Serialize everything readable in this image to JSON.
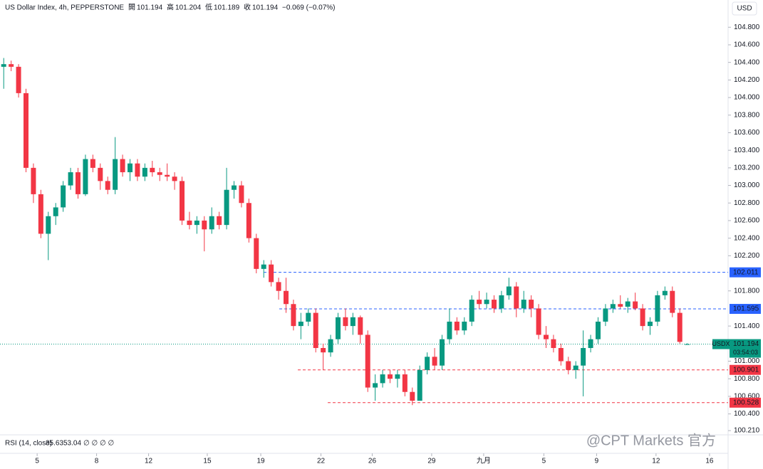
{
  "chart_data": {
    "type": "candlestick",
    "title": "US Dollar Index, 4h, PEPPERSTONE",
    "ohlc_header": [
      {
        "name": "開",
        "value": "101.194"
      },
      {
        "name": "高",
        "value": "101.204"
      },
      {
        "name": "低",
        "value": "101.189"
      },
      {
        "name": "收",
        "value": "101.194"
      }
    ],
    "change": "−0.069 (−0.07%)",
    "currency": "USD",
    "up_color": "#089981",
    "down_color": "#f23645",
    "ylim": [
      100.17,
      105.11
    ],
    "yticks": [
      {
        "value": 104.8,
        "label": "104.800"
      },
      {
        "value": 104.6,
        "label": "104.600"
      },
      {
        "value": 104.4,
        "label": "104.400"
      },
      {
        "value": 104.2,
        "label": "104.200"
      },
      {
        "value": 104.0,
        "label": "104.000"
      },
      {
        "value": 103.8,
        "label": "103.800"
      },
      {
        "value": 103.6,
        "label": "103.600"
      },
      {
        "value": 103.4,
        "label": "103.400"
      },
      {
        "value": 103.2,
        "label": "103.200"
      },
      {
        "value": 103.0,
        "label": "103.000"
      },
      {
        "value": 102.8,
        "label": "102.800"
      },
      {
        "value": 102.6,
        "label": "102.600"
      },
      {
        "value": 102.4,
        "label": "102.400"
      },
      {
        "value": 102.2,
        "label": "102.200"
      },
      {
        "value": 101.8,
        "label": "101.800"
      },
      {
        "value": 101.4,
        "label": "101.400"
      },
      {
        "value": 101.0,
        "label": "101.000"
      },
      {
        "value": 100.8,
        "label": "100.800"
      },
      {
        "value": 100.6,
        "label": "100.600"
      },
      {
        "value": 100.4,
        "label": "100.400"
      },
      {
        "value": 100.21,
        "label": "100.210"
      }
    ],
    "xlim": [
      -0.5,
      97.5
    ],
    "xticks": [
      {
        "value": 4.5,
        "label": "5"
      },
      {
        "value": 12.5,
        "label": "8"
      },
      {
        "value": 19.5,
        "label": "12"
      },
      {
        "value": 27.4,
        "label": "15"
      },
      {
        "value": 34.6,
        "label": "19"
      },
      {
        "value": 42.7,
        "label": "22"
      },
      {
        "value": 49.6,
        "label": "26"
      },
      {
        "value": 57.6,
        "label": "29"
      },
      {
        "value": 64.6,
        "label": "九月"
      },
      {
        "value": 72.7,
        "label": "5"
      },
      {
        "value": 79.8,
        "label": "9"
      },
      {
        "value": 87.8,
        "label": "12"
      },
      {
        "value": 95,
        "label": "16"
      }
    ],
    "ohlc": [
      [
        104.35,
        104.45,
        104.1,
        104.38
      ],
      [
        104.38,
        104.42,
        104.3,
        104.35
      ],
      [
        104.35,
        104.38,
        104.0,
        104.05
      ],
      [
        104.05,
        104.1,
        103.15,
        103.2
      ],
      [
        103.2,
        103.25,
        102.8,
        102.9
      ],
      [
        102.9,
        102.95,
        102.4,
        102.45
      ],
      [
        102.45,
        102.7,
        102.15,
        102.65
      ],
      [
        102.65,
        102.8,
        102.55,
        102.75
      ],
      [
        102.75,
        103.05,
        102.7,
        103.0
      ],
      [
        103.0,
        103.2,
        102.95,
        103.15
      ],
      [
        103.15,
        103.2,
        102.85,
        102.9
      ],
      [
        102.9,
        103.35,
        102.88,
        103.3
      ],
      [
        103.3,
        103.35,
        103.15,
        103.2
      ],
      [
        103.2,
        103.25,
        102.95,
        103.05
      ],
      [
        103.05,
        103.1,
        102.9,
        102.95
      ],
      [
        102.95,
        103.55,
        102.9,
        103.3
      ],
      [
        103.3,
        103.35,
        103.1,
        103.15
      ],
      [
        103.15,
        103.3,
        103.05,
        103.25
      ],
      [
        103.25,
        103.3,
        103.05,
        103.1
      ],
      [
        103.1,
        103.25,
        103.05,
        103.2
      ],
      [
        103.2,
        103.28,
        103.1,
        103.15
      ],
      [
        103.15,
        103.2,
        103.05,
        103.12
      ],
      [
        103.12,
        103.25,
        103.05,
        103.1
      ],
      [
        103.1,
        103.15,
        102.95,
        103.05
      ],
      [
        103.05,
        103.1,
        102.55,
        102.6
      ],
      [
        102.6,
        102.7,
        102.5,
        102.55
      ],
      [
        102.55,
        102.65,
        102.45,
        102.6
      ],
      [
        102.6,
        102.65,
        102.25,
        102.5
      ],
      [
        102.5,
        102.75,
        102.45,
        102.65
      ],
      [
        102.65,
        102.7,
        102.5,
        102.55
      ],
      [
        102.55,
        103.2,
        102.5,
        102.95
      ],
      [
        102.95,
        103.05,
        102.85,
        103.0
      ],
      [
        103.0,
        103.05,
        102.75,
        102.8
      ],
      [
        102.8,
        102.85,
        102.35,
        102.4
      ],
      [
        102.4,
        102.45,
        102.0,
        102.05
      ],
      [
        102.05,
        102.15,
        101.95,
        102.1
      ],
      [
        102.1,
        102.15,
        101.85,
        101.9
      ],
      [
        101.9,
        101.95,
        101.7,
        101.8
      ],
      [
        101.8,
        101.95,
        101.55,
        101.65
      ],
      [
        101.65,
        101.7,
        101.35,
        101.4
      ],
      [
        101.4,
        101.55,
        101.25,
        101.45
      ],
      [
        101.45,
        101.6,
        101.4,
        101.55
      ],
      [
        101.55,
        101.6,
        101.1,
        101.15
      ],
      [
        101.15,
        101.2,
        100.9,
        101.1
      ],
      [
        101.1,
        101.3,
        101.05,
        101.25
      ],
      [
        101.25,
        101.55,
        101.2,
        101.5
      ],
      [
        101.5,
        101.6,
        101.35,
        101.4
      ],
      [
        101.4,
        101.55,
        101.3,
        101.5
      ],
      [
        101.5,
        101.52,
        101.2,
        101.3
      ],
      [
        101.3,
        101.35,
        100.65,
        100.7
      ],
      [
        100.7,
        100.85,
        100.55,
        100.75
      ],
      [
        100.75,
        100.9,
        100.7,
        100.85
      ],
      [
        100.85,
        100.9,
        100.75,
        100.8
      ],
      [
        100.8,
        100.9,
        100.7,
        100.85
      ],
      [
        100.85,
        100.9,
        100.6,
        100.65
      ],
      [
        100.65,
        100.7,
        100.5,
        100.55
      ],
      [
        100.55,
        100.95,
        100.55,
        100.9
      ],
      [
        100.9,
        101.1,
        100.85,
        101.05
      ],
      [
        101.05,
        101.15,
        100.9,
        100.95
      ],
      [
        100.95,
        101.3,
        100.9,
        101.25
      ],
      [
        101.25,
        101.6,
        101.2,
        101.45
      ],
      [
        101.45,
        101.5,
        101.3,
        101.35
      ],
      [
        101.35,
        101.5,
        101.3,
        101.45
      ],
      [
        101.45,
        101.75,
        101.4,
        101.7
      ],
      [
        101.7,
        101.8,
        101.6,
        101.65
      ],
      [
        101.65,
        101.78,
        101.6,
        101.7
      ],
      [
        101.7,
        101.75,
        101.55,
        101.6
      ],
      [
        101.6,
        101.8,
        101.55,
        101.75
      ],
      [
        101.75,
        101.95,
        101.7,
        101.85
      ],
      [
        101.85,
        101.9,
        101.5,
        101.6
      ],
      [
        101.6,
        101.8,
        101.55,
        101.7
      ],
      [
        101.7,
        101.75,
        101.5,
        101.6
      ],
      [
        101.6,
        101.65,
        101.25,
        101.3
      ],
      [
        101.3,
        101.4,
        101.15,
        101.25
      ],
      [
        101.25,
        101.3,
        101.1,
        101.15
      ],
      [
        101.15,
        101.2,
        100.95,
        101.0
      ],
      [
        101.0,
        101.05,
        100.85,
        100.9
      ],
      [
        100.9,
        101.0,
        100.8,
        100.95
      ],
      [
        100.95,
        101.35,
        100.6,
        101.15
      ],
      [
        101.15,
        101.3,
        101.1,
        101.25
      ],
      [
        101.25,
        101.5,
        101.2,
        101.45
      ],
      [
        101.45,
        101.65,
        101.4,
        101.6
      ],
      [
        101.6,
        101.7,
        101.55,
        101.65
      ],
      [
        101.65,
        101.75,
        101.6,
        101.62
      ],
      [
        101.62,
        101.72,
        101.55,
        101.68
      ],
      [
        101.68,
        101.78,
        101.58,
        101.6
      ],
      [
        101.6,
        101.65,
        101.35,
        101.4
      ],
      [
        101.4,
        101.5,
        101.3,
        101.45
      ],
      [
        101.45,
        101.8,
        101.4,
        101.75
      ],
      [
        101.75,
        101.85,
        101.7,
        101.8
      ],
      [
        101.8,
        101.85,
        101.5,
        101.55
      ],
      [
        101.55,
        101.6,
        101.2,
        101.22
      ],
      [
        101.194,
        101.204,
        101.189,
        101.194
      ]
    ],
    "levels": [
      {
        "value": 102.011,
        "label": "102.011",
        "color": "#2962ff"
      },
      {
        "value": 101.595,
        "label": "101.595",
        "color": "#2962ff"
      },
      {
        "value": 100.901,
        "label": "100.901",
        "color": "#f23645"
      },
      {
        "value": 100.528,
        "label": "100.528",
        "color": "#f23645"
      }
    ],
    "last_price": {
      "value": 101.194,
      "label": "101.194",
      "symbol": "USDX",
      "countdown": "03:54:03",
      "color": "#089981"
    },
    "rsi": {
      "title": "RSI (14, close)",
      "values": [
        {
          "value": 35.63,
          "color": "#7e57c2"
        },
        {
          "value": 53.04,
          "color": "#f7c325"
        }
      ],
      "extra": "∅ ∅ ∅ ∅"
    },
    "watermark": "@CPT Markets 官方"
  }
}
